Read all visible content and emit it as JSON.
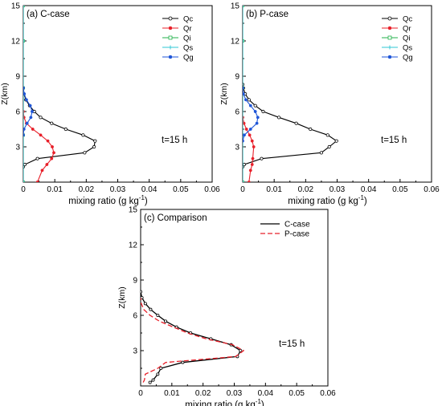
{
  "chart_data": [
    {
      "type": "line",
      "panel_label": "(a) C-case",
      "annotation": "t=15 h",
      "xlabel": "mixing ratio (g kg",
      "xlabel_sup": "-1",
      "xlabel_close": ")",
      "ylabel": "Z(km)",
      "xlim": [
        0,
        0.06
      ],
      "ylim": [
        0,
        15
      ],
      "xticks": [
        "0",
        "0.01",
        "0.02",
        "0.03",
        "0.04",
        "0.05",
        "0.06"
      ],
      "yticks": [
        "3",
        "6",
        "9",
        "12",
        "15"
      ],
      "legend": "top-right",
      "colors": {
        "Qc": "#000000",
        "Qr": "#e8202a",
        "Qi": "#21b14a",
        "Qs": "#2fc7d6",
        "Qg": "#1f56d8"
      },
      "series": [
        {
          "name": "Qc",
          "x": [
            0,
            0.0005,
            0.0045,
            0.0195,
            0.0225,
            0.0228,
            0.019,
            0.0135,
            0.009,
            0.0055,
            0.0035,
            0.002,
            0.0008,
            0.0002,
            0
          ],
          "y": [
            1.3,
            1.5,
            2.0,
            2.5,
            3.0,
            3.5,
            4.0,
            4.5,
            5.0,
            5.5,
            6.0,
            6.5,
            7.0,
            7.5,
            8.0
          ]
        },
        {
          "name": "Qr",
          "x": [
            0.0045,
            0.006,
            0.0075,
            0.009,
            0.0097,
            0.0092,
            0.0078,
            0.0055,
            0.003,
            0.001,
            0.0002,
            0
          ],
          "y": [
            0,
            1.0,
            1.5,
            2.0,
            2.5,
            3.0,
            3.5,
            4.0,
            4.5,
            5.0,
            5.5,
            6.0
          ]
        },
        {
          "name": "Qi",
          "x": [
            0,
            0,
            0,
            0,
            0
          ],
          "y": [
            0,
            4,
            8,
            12,
            15
          ]
        },
        {
          "name": "Qs",
          "x": [
            0,
            0,
            0,
            0,
            0
          ],
          "y": [
            0,
            4,
            8,
            12,
            15
          ]
        },
        {
          "name": "Qg",
          "x": [
            0,
            0.0002,
            0.0012,
            0.0024,
            0.0028,
            0.0022,
            0.001,
            0.0003,
            0
          ],
          "y": [
            4.0,
            4.5,
            5.0,
            5.5,
            6.0,
            6.5,
            7.0,
            7.5,
            8.0
          ]
        }
      ]
    },
    {
      "type": "line",
      "panel_label": "(b) P-case",
      "annotation": "t=15 h",
      "xlabel": "mixing ratio (g kg",
      "xlabel_sup": "-1",
      "xlabel_close": ")",
      "ylabel": "Z(km)",
      "xlim": [
        0,
        0.06
      ],
      "ylim": [
        0,
        15
      ],
      "xticks": [
        "0",
        "0.01",
        "0.02",
        "0.03",
        "0.04",
        "0.05",
        "0.06"
      ],
      "yticks": [
        "3",
        "6",
        "9",
        "12",
        "15"
      ],
      "legend": "top-right",
      "colors": {
        "Qc": "#000000",
        "Qr": "#e8202a",
        "Qi": "#21b14a",
        "Qs": "#2fc7d6",
        "Qg": "#1f56d8"
      },
      "series": [
        {
          "name": "Qc",
          "x": [
            0,
            0.0005,
            0.006,
            0.025,
            0.0275,
            0.0298,
            0.027,
            0.0215,
            0.017,
            0.0115,
            0.0065,
            0.004,
            0.002,
            0.0008,
            0.0002,
            0
          ],
          "y": [
            1.3,
            1.5,
            2.0,
            2.5,
            3.0,
            3.5,
            4.0,
            4.5,
            5.0,
            5.5,
            6.0,
            6.5,
            7.0,
            7.5,
            8.0,
            8.3
          ]
        },
        {
          "name": "Qr",
          "x": [
            0.002,
            0.0025,
            0.003,
            0.0032,
            0.0035,
            0.003,
            0.0022,
            0.0012,
            0.0004,
            0
          ],
          "y": [
            0,
            1.0,
            1.5,
            2.0,
            3.0,
            3.5,
            4.0,
            4.5,
            5.0,
            5.5
          ]
        },
        {
          "name": "Qi",
          "x": [
            0,
            0,
            0,
            0,
            0
          ],
          "y": [
            0,
            4,
            8,
            12,
            15
          ]
        },
        {
          "name": "Qs",
          "x": [
            0,
            0,
            0,
            0,
            0
          ],
          "y": [
            0,
            4,
            8,
            12,
            15
          ]
        },
        {
          "name": "Qg",
          "x": [
            0,
            0.0005,
            0.0025,
            0.0045,
            0.0048,
            0.004,
            0.0025,
            0.001,
            0.0002,
            0
          ],
          "y": [
            3.5,
            4.0,
            4.5,
            5.0,
            5.5,
            6.0,
            6.5,
            7.0,
            7.5,
            8.0
          ]
        }
      ]
    },
    {
      "type": "line",
      "panel_label": "(c) Comparison",
      "annotation": "t=15 h",
      "xlabel": "mixing ratio (g kg",
      "xlabel_sup": "-1",
      "xlabel_close": ")",
      "ylabel": "Z(km)",
      "xlim": [
        0,
        0.06
      ],
      "ylim": [
        0,
        15
      ],
      "xticks": [
        "0",
        "0.01",
        "0.02",
        "0.03",
        "0.04",
        "0.05",
        "0.06"
      ],
      "yticks": [
        "3",
        "6",
        "9",
        "12",
        "15"
      ],
      "legend": "top-right",
      "colors": {
        "C-case": "#000000",
        "P-case": "#e8202a"
      },
      "series": [
        {
          "name": "C-case",
          "x": [
            0.003,
            0.004,
            0.0055,
            0.0065,
            0.0135,
            0.031,
            0.032,
            0.029,
            0.0225,
            0.016,
            0.0115,
            0.008,
            0.0055,
            0.0032,
            0.0015,
            0.0004,
            0
          ],
          "y": [
            0.3,
            0.5,
            1.0,
            1.5,
            2.0,
            2.5,
            3.0,
            3.5,
            4.0,
            4.5,
            5.0,
            5.5,
            6.0,
            6.5,
            7.0,
            7.5,
            8.0
          ]
        },
        {
          "name": "P-case",
          "x": [
            0.0008,
            0.0012,
            0.0015,
            0.0055,
            0.008,
            0.0305,
            0.033,
            0.0295,
            0.021,
            0.015,
            0.0105,
            0.006,
            0.003,
            0.001,
            0.0002,
            0
          ],
          "y": [
            0.3,
            0.5,
            1.0,
            1.5,
            2.0,
            2.5,
            3.0,
            3.5,
            4.0,
            4.5,
            5.0,
            5.5,
            6.0,
            6.5,
            7.0,
            7.5
          ]
        }
      ]
    }
  ]
}
